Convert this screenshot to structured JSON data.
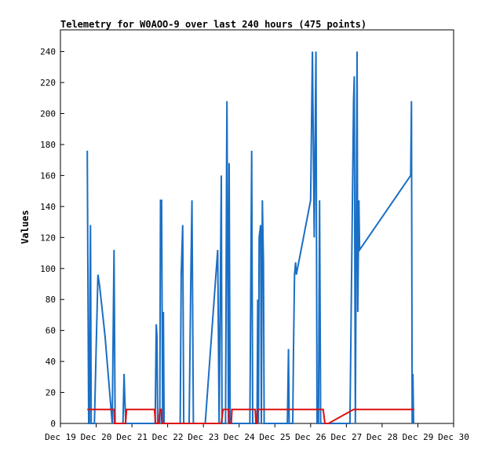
{
  "chart_data": {
    "type": "line",
    "title": "Telemetry for W0AOO-9 over last 240 hours (475 points)",
    "ylabel": "Values",
    "xlabel": "",
    "ylim": [
      0,
      254
    ],
    "y_ticks": [
      0,
      20,
      40,
      60,
      80,
      100,
      120,
      140,
      160,
      180,
      200,
      220,
      240
    ],
    "x_ticks": [
      "Dec 19",
      "Dec 20",
      "Dec 21",
      "Dec 22",
      "Dec 23",
      "Dec 24",
      "Dec 25",
      "Dec 26",
      "Dec 27",
      "Dec 28",
      "Dec 29",
      "Dec 30"
    ],
    "grid": false,
    "colors": {
      "series_blue": "#1a6fc4",
      "series_red": "#dd1111",
      "axis": "#000000"
    },
    "series": [
      {
        "color": "#1a6fc4",
        "points": [
          [
            19.75,
            176
          ],
          [
            19.77,
            88
          ],
          [
            19.79,
            0
          ],
          [
            19.81,
            0
          ],
          [
            19.83,
            96
          ],
          [
            19.84,
            128
          ],
          [
            19.86,
            0
          ],
          [
            19.9,
            0
          ],
          [
            19.95,
            0
          ],
          [
            20.0,
            48
          ],
          [
            20.05,
            96
          ],
          [
            20.1,
            88
          ],
          [
            20.25,
            56
          ],
          [
            20.45,
            0
          ],
          [
            20.5,
            112
          ],
          [
            20.53,
            0
          ],
          [
            20.75,
            0
          ],
          [
            20.78,
            32
          ],
          [
            20.8,
            16
          ],
          [
            20.83,
            0
          ],
          [
            21.0,
            0
          ],
          [
            21.5,
            0
          ],
          [
            21.65,
            0
          ],
          [
            21.68,
            64
          ],
          [
            21.7,
            56
          ],
          [
            21.72,
            0
          ],
          [
            21.78,
            0
          ],
          [
            21.8,
            144
          ],
          [
            21.83,
            144
          ],
          [
            21.86,
            0
          ],
          [
            21.88,
            72
          ],
          [
            21.9,
            0
          ],
          [
            22.05,
            0
          ],
          [
            22.35,
            0
          ],
          [
            22.38,
            96
          ],
          [
            22.42,
            128
          ],
          [
            22.45,
            0
          ],
          [
            22.6,
            0
          ],
          [
            22.65,
            96
          ],
          [
            22.68,
            144
          ],
          [
            22.72,
            0
          ],
          [
            23.05,
            0
          ],
          [
            23.4,
            112
          ],
          [
            23.44,
            0
          ],
          [
            23.5,
            160
          ],
          [
            23.52,
            0
          ],
          [
            23.62,
            0
          ],
          [
            23.65,
            176
          ],
          [
            23.66,
            208
          ],
          [
            23.7,
            0
          ],
          [
            23.72,
            168
          ],
          [
            23.75,
            0
          ],
          [
            24.3,
            0
          ],
          [
            24.35,
            176
          ],
          [
            24.38,
            0
          ],
          [
            24.5,
            0
          ],
          [
            24.52,
            80
          ],
          [
            24.54,
            0
          ],
          [
            24.56,
            120
          ],
          [
            24.6,
            128
          ],
          [
            24.62,
            0
          ],
          [
            24.65,
            144
          ],
          [
            24.68,
            104
          ],
          [
            24.7,
            0
          ],
          [
            25.35,
            0
          ],
          [
            25.38,
            48
          ],
          [
            25.4,
            0
          ],
          [
            25.5,
            0
          ],
          [
            25.52,
            48
          ],
          [
            25.55,
            96
          ],
          [
            25.58,
            104
          ],
          [
            25.6,
            96
          ],
          [
            26.0,
            144
          ],
          [
            26.05,
            240
          ],
          [
            26.1,
            120
          ],
          [
            26.15,
            240
          ],
          [
            26.18,
            0
          ],
          [
            26.22,
            0
          ],
          [
            26.25,
            144
          ],
          [
            26.28,
            0
          ],
          [
            27.05,
            0
          ],
          [
            27.1,
            0
          ],
          [
            27.2,
            208
          ],
          [
            27.22,
            224
          ],
          [
            27.25,
            0
          ],
          [
            27.3,
            240
          ],
          [
            27.32,
            72
          ],
          [
            27.35,
            144
          ],
          [
            27.37,
            112
          ],
          [
            28.8,
            160
          ],
          [
            28.82,
            208
          ],
          [
            28.84,
            0
          ],
          [
            28.86,
            32
          ],
          [
            28.88,
            0
          ]
        ]
      },
      {
        "color": "#dd1111",
        "points": [
          [
            19.75,
            9
          ],
          [
            20.5,
            9
          ],
          [
            20.51,
            0
          ],
          [
            20.82,
            0
          ],
          [
            20.85,
            9
          ],
          [
            21.63,
            9
          ],
          [
            21.66,
            0
          ],
          [
            21.75,
            0
          ],
          [
            21.78,
            9
          ],
          [
            21.82,
            9
          ],
          [
            21.84,
            0
          ],
          [
            23.5,
            0
          ],
          [
            23.55,
            9
          ],
          [
            23.7,
            9
          ],
          [
            23.72,
            0
          ],
          [
            23.78,
            0
          ],
          [
            23.8,
            9
          ],
          [
            24.45,
            9
          ],
          [
            24.47,
            0
          ],
          [
            24.5,
            0
          ],
          [
            24.52,
            9
          ],
          [
            26.35,
            9
          ],
          [
            26.4,
            0
          ],
          [
            26.5,
            0
          ],
          [
            27.2,
            9
          ],
          [
            28.9,
            9
          ]
        ]
      }
    ]
  }
}
